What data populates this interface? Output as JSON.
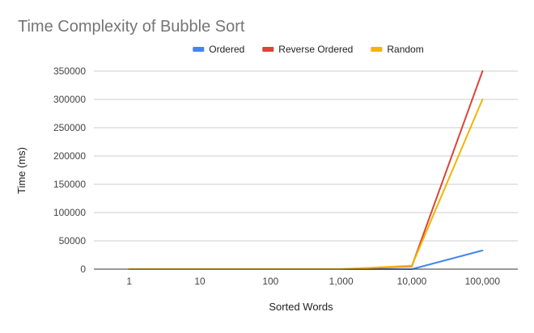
{
  "chart_data": {
    "type": "line",
    "title": "Time Complexity of Bubble Sort",
    "xlabel": "Sorted Words",
    "ylabel": "Time (ms)",
    "categories": [
      "1",
      "10",
      "100",
      "1,000",
      "10,000",
      "100,000"
    ],
    "ylim": [
      0,
      350000
    ],
    "yticks": [
      0,
      50000,
      100000,
      150000,
      200000,
      250000,
      300000,
      350000
    ],
    "grid": true,
    "legend_position": "top",
    "series": [
      {
        "name": "Ordered",
        "color": "#4285f4",
        "values": [
          0,
          0,
          0,
          0,
          0,
          33000
        ]
      },
      {
        "name": "Reverse Ordered",
        "color": "#db4437",
        "values": [
          0,
          0,
          0,
          0,
          5000,
          350000
        ]
      },
      {
        "name": "Random",
        "color": "#f4b400",
        "values": [
          0,
          0,
          0,
          0,
          6000,
          300000
        ]
      }
    ]
  }
}
